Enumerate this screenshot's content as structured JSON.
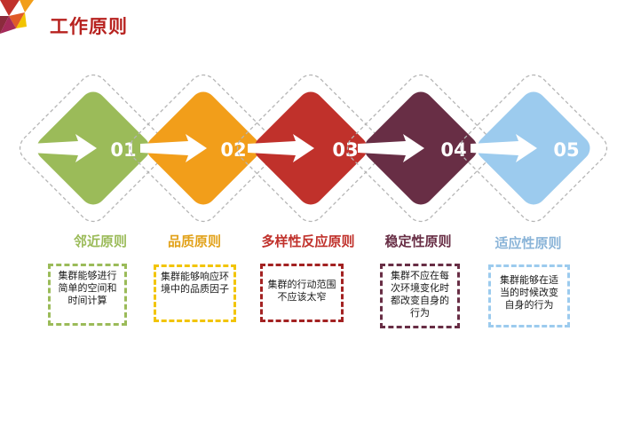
{
  "page": {
    "title": "工作原则"
  },
  "steps": [
    {
      "num": "01",
      "title": "邻近原则",
      "desc": "集群能够进行简单的空间和时间计算",
      "color": "#9bbb59"
    },
    {
      "num": "02",
      "title": "品质原则",
      "desc": "集群能够响应环境中的品质因子",
      "color": "#f29e1a"
    },
    {
      "num": "03",
      "title": "多样性反应原则",
      "desc": "集群的行动范围不应该太窄",
      "color": "#c0312b"
    },
    {
      "num": "04",
      "title": "稳定性原则",
      "desc": "集群不应在每次环境变化时都改变自身的行为",
      "color": "#682e45"
    },
    {
      "num": "05",
      "title": "适应性原则",
      "desc": "集群能够在适当的时候改变自身的行为",
      "color": "#9ccbee"
    }
  ],
  "colors": {
    "title": "#b7221f",
    "title_step1": "#9bbb59",
    "title_step2": "#e2a21a",
    "title_step3": "#c0312b",
    "title_step4": "#682e45",
    "title_step5": "#8ab4d8",
    "box_step2": "#f2c400"
  }
}
